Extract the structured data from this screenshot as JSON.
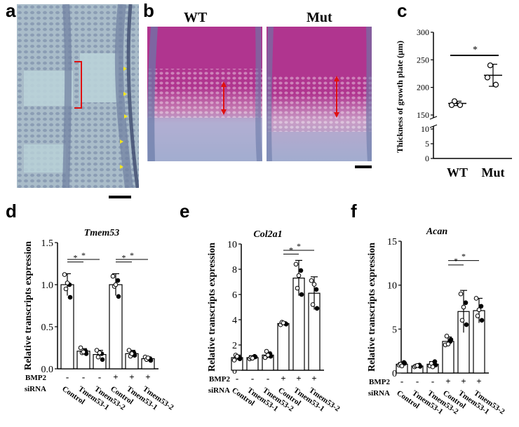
{
  "panels": {
    "a": {
      "label": "a"
    },
    "b": {
      "label": "b",
      "wt_label": "WT",
      "mut_label": "Mut"
    },
    "c": {
      "label": "c"
    },
    "d": {
      "label": "d"
    },
    "e": {
      "label": "e"
    },
    "f": {
      "label": "f"
    }
  },
  "colors": {
    "histology_bg": "#a9bcc9",
    "safranin_magenta": "#b0358f",
    "arrow_red": "#e01010",
    "marker_yellow": "#f2e51e"
  },
  "chart_data": [
    {
      "id": "c",
      "type": "scatter",
      "title": "",
      "xlabel": "",
      "ylabel": "Thickness of growth plate (μm)",
      "categories": [
        "WT",
        "Mut"
      ],
      "ylim": [
        0,
        300
      ],
      "axis_break": [
        10,
        150
      ],
      "yticks": [
        0,
        5,
        10,
        150,
        200,
        250,
        300
      ],
      "series": [
        {
          "points": [
            [
              175,
              168,
              168
            ],
            [
              240,
              205,
              218
            ]
          ],
          "mean": [
            171,
            222
          ],
          "sd": [
            4,
            20
          ]
        }
      ],
      "significance": [
        {
          "pair": [
            0,
            1
          ],
          "label": "*"
        }
      ],
      "grid": false
    },
    {
      "id": "d",
      "type": "bar",
      "title": "Tmem53",
      "ylabel": "Relative transcripts expression",
      "ylim": [
        0,
        1.5
      ],
      "yticks": [
        0.0,
        0.5,
        1.0,
        1.5
      ],
      "categories": [
        "Control",
        "Tmem53-1",
        "Tmem53-2",
        "Control",
        "Tmem53-1",
        "Tmem53-2"
      ],
      "rows": {
        "BMP2": [
          "-",
          "-",
          "-",
          "+",
          "+",
          "+"
        ],
        "siRNA": "siRNA"
      },
      "row_labels": [
        "BMP2",
        "siRNA"
      ],
      "values": [
        1.0,
        0.21,
        0.17,
        1.0,
        0.18,
        0.12
      ],
      "errors": [
        0.13,
        0.03,
        0.05,
        0.13,
        0.04,
        0.02
      ],
      "dots": [
        [
          1.12,
          1.0,
          0.95,
          0.85,
          1.02
        ],
        [
          0.25,
          0.21,
          0.19,
          0.18,
          0.2
        ],
        [
          0.22,
          0.18,
          0.14,
          0.11,
          0.19
        ],
        [
          1.1,
          1.05,
          0.98,
          0.86,
          1.0
        ],
        [
          0.22,
          0.19,
          0.15,
          0.16,
          0.18
        ],
        [
          0.14,
          0.12,
          0.11,
          0.1,
          0.13
        ]
      ],
      "significance": [
        {
          "pair": [
            0,
            1
          ],
          "label": "*"
        },
        {
          "pair": [
            0,
            2
          ],
          "label": "*"
        },
        {
          "pair": [
            3,
            4
          ],
          "label": "*"
        },
        {
          "pair": [
            3,
            5
          ],
          "label": "*"
        }
      ]
    },
    {
      "id": "e",
      "type": "bar",
      "title": "Col2a1",
      "ylabel": "Relative transcripts expression",
      "ylim": [
        0,
        10
      ],
      "yticks": [
        0,
        2,
        4,
        6,
        8,
        10
      ],
      "categories": [
        "Control",
        "Tmem53-1",
        "Tmem53-2",
        "Control",
        "Tmem53-1",
        "Tmem53-2"
      ],
      "rows": {
        "BMP2": [
          "-",
          "-",
          "-",
          "+",
          "+",
          "+"
        ]
      },
      "row_labels": [
        "BMP2",
        "siRNA"
      ],
      "values": [
        1.0,
        1.0,
        1.2,
        3.7,
        7.3,
        6.1
      ],
      "errors": [
        0.2,
        0.15,
        0.25,
        0.1,
        1.4,
        1.3
      ],
      "dots": [
        [
          0.8,
          1.0,
          1.2,
          0.9,
          1.1
        ],
        [
          0.9,
          1.1,
          1.0,
          1.05,
          0.95
        ],
        [
          1.0,
          1.3,
          1.5,
          1.1,
          1.2
        ],
        [
          3.6,
          3.7,
          3.8,
          3.65,
          3.75
        ],
        [
          8.4,
          7.9,
          6.5,
          6.0,
          7.5
        ],
        [
          7.1,
          6.4,
          5.2,
          4.9,
          6.8
        ]
      ],
      "significance": [
        {
          "pair": [
            3,
            4
          ],
          "label": "*"
        },
        {
          "pair": [
            3,
            5
          ],
          "label": "*"
        }
      ]
    },
    {
      "id": "f",
      "type": "bar",
      "title": "Acan",
      "ylabel": "Relative transcripts expression",
      "ylim": [
        0,
        15
      ],
      "yticks": [
        0,
        5,
        10,
        15
      ],
      "categories": [
        "Control",
        "Tmem53-1",
        "Tmem53-2",
        "Control",
        "Tmem53-1",
        "Tmem53-2"
      ],
      "rows": {
        "BMP2": [
          "-",
          "-",
          "-",
          "+",
          "+",
          "+"
        ]
      },
      "row_labels": [
        "BMP2",
        "siRNA"
      ],
      "values": [
        1.0,
        0.8,
        1.0,
        3.6,
        7.0,
        7.1
      ],
      "errors": [
        0.2,
        0.15,
        0.3,
        0.5,
        2.4,
        1.4
      ],
      "dots": [
        [
          0.9,
          1.2,
          1.0,
          1.1,
          0.8
        ],
        [
          0.7,
          0.9,
          0.8,
          0.75,
          0.85
        ],
        [
          0.8,
          1.3,
          1.1,
          0.9,
          0.7
        ],
        [
          3.2,
          3.6,
          4.2,
          3.8,
          3.3
        ],
        [
          9.0,
          8.0,
          6.0,
          5.5,
          7.5
        ],
        [
          8.5,
          7.6,
          6.5,
          6.0,
          7.2
        ]
      ],
      "significance": [
        {
          "pair": [
            3,
            4
          ],
          "label": "*"
        },
        {
          "pair": [
            3,
            5
          ],
          "label": "*"
        }
      ]
    }
  ],
  "bar_labels": {
    "bmp2": "BMP2",
    "sirna": "siRNA",
    "minus": "-",
    "plus": "+",
    "star": "*"
  }
}
